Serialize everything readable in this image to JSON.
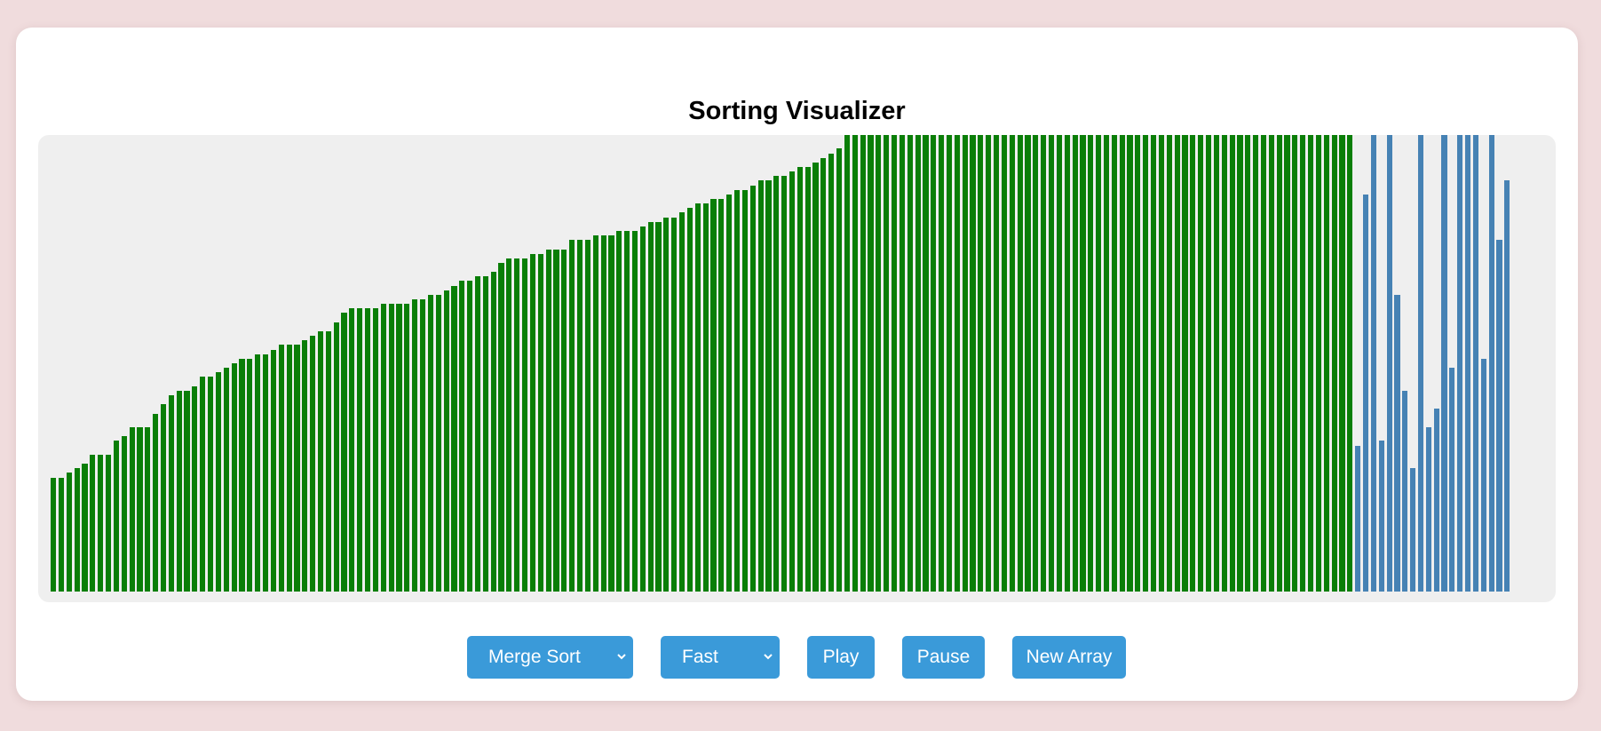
{
  "app": {
    "title": "Sorting Visualizer"
  },
  "controls": {
    "algorithm": {
      "selected": "Merge Sort"
    },
    "speed": {
      "selected": "Fast"
    },
    "play_label": "Play",
    "pause_label": "Pause",
    "new_array_label": "New Array"
  },
  "colors": {
    "sorted": "#0a7e07",
    "unsorted": "#4682b4",
    "button": "#3a9ad9"
  },
  "bars": {
    "max_value": 100,
    "values": [
      25,
      25,
      26,
      27,
      28,
      30,
      30,
      30,
      33,
      34,
      36,
      36,
      36,
      39,
      41,
      43,
      44,
      44,
      45,
      47,
      47,
      48,
      49,
      50,
      51,
      51,
      52,
      52,
      53,
      54,
      54,
      54,
      55,
      56,
      57,
      57,
      59,
      61,
      62,
      62,
      62,
      62,
      63,
      63,
      63,
      63,
      64,
      64,
      65,
      65,
      66,
      67,
      68,
      68,
      69,
      69,
      70,
      72,
      73,
      73,
      73,
      74,
      74,
      75,
      75,
      75,
      77,
      77,
      77,
      78,
      78,
      78,
      79,
      79,
      79,
      80,
      81,
      81,
      82,
      82,
      83,
      84,
      85,
      85,
      86,
      86,
      87,
      88,
      88,
      89,
      90,
      90,
      91,
      91,
      92,
      93,
      93,
      94,
      95,
      96,
      97,
      100,
      100,
      100,
      100,
      100,
      100,
      100,
      100,
      100,
      100,
      100,
      100,
      100,
      100,
      100,
      100,
      100,
      100,
      100,
      100,
      100,
      100,
      100,
      100,
      100,
      100,
      100,
      100,
      100,
      100,
      100,
      100,
      100,
      100,
      100,
      100,
      100,
      100,
      100,
      100,
      100,
      100,
      100,
      100,
      100,
      100,
      100,
      100,
      100,
      100,
      100,
      100,
      100,
      100,
      100,
      100,
      100,
      100,
      100,
      100,
      100,
      100,
      100,
      100,
      100,
      32,
      87,
      100,
      33,
      100,
      65,
      44,
      27,
      100,
      36,
      40,
      100,
      49,
      100,
      100,
      100,
      51,
      100,
      77,
      90
    ],
    "sorted_count": 166
  }
}
